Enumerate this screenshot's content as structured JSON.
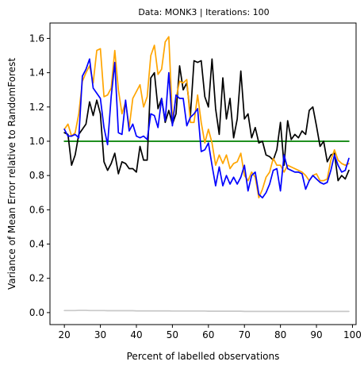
{
  "chart_data": {
    "type": "line",
    "title": "Data: MONK3 | Iterations: 100",
    "xlabel": "Percent of labelled observations",
    "ylabel": "Variance of Mean Error relative to RandomForest",
    "xlim": [
      16,
      101
    ],
    "ylim": [
      -0.07,
      1.69
    ],
    "xticks": [
      20,
      30,
      40,
      50,
      60,
      70,
      80,
      90,
      100
    ],
    "yticks": [
      0.0,
      0.2,
      0.4,
      0.6,
      0.8,
      1.0,
      1.2,
      1.4,
      1.6
    ],
    "ytick_labels": [
      "0.0",
      "0.2",
      "0.4",
      "0.6",
      "0.8",
      "1.0",
      "1.2",
      "1.4",
      "1.6"
    ],
    "x": [
      20,
      21,
      22,
      23,
      24,
      25,
      26,
      27,
      28,
      29,
      30,
      31,
      32,
      33,
      34,
      35,
      36,
      37,
      38,
      39,
      40,
      41,
      42,
      43,
      44,
      45,
      46,
      47,
      48,
      49,
      50,
      51,
      52,
      53,
      54,
      55,
      56,
      57,
      58,
      59,
      60,
      61,
      62,
      63,
      64,
      65,
      66,
      67,
      68,
      69,
      70,
      71,
      72,
      73,
      74,
      75,
      76,
      77,
      78,
      79,
      80,
      81,
      82,
      83,
      84,
      85,
      86,
      87,
      88,
      89,
      90,
      91,
      92,
      93,
      94,
      95,
      96,
      97,
      98,
      99
    ],
    "series": [
      {
        "color": "#000000",
        "values": [
          1.05,
          1.04,
          0.86,
          0.92,
          1.04,
          1.07,
          1.1,
          1.23,
          1.15,
          1.24,
          1.16,
          0.88,
          0.83,
          0.87,
          0.93,
          0.81,
          0.88,
          0.87,
          0.84,
          0.84,
          0.82,
          0.97,
          0.89,
          0.89,
          1.37,
          1.4,
          1.19,
          1.25,
          1.11,
          1.18,
          1.1,
          1.16,
          1.44,
          1.3,
          1.34,
          1.15,
          1.47,
          1.46,
          1.47,
          1.26,
          1.2,
          1.48,
          1.19,
          1.04,
          1.37,
          1.13,
          1.25,
          1.02,
          1.13,
          1.41,
          1.13,
          1.16,
          1.02,
          1.08,
          0.99,
          1.0,
          0.92,
          0.91,
          0.89,
          0.95,
          1.11,
          0.86,
          1.12,
          1.01,
          1.04,
          1.02,
          1.06,
          1.04,
          1.18,
          1.2,
          1.09,
          0.97,
          1.0,
          0.88,
          0.92,
          0.93,
          0.77,
          0.8,
          0.78,
          0.83
        ]
      },
      {
        "color": "#ffa500",
        "values": [
          1.07,
          1.1,
          1.03,
          1.05,
          1.16,
          1.35,
          1.4,
          1.44,
          1.34,
          1.53,
          1.54,
          1.26,
          1.27,
          1.31,
          1.53,
          1.3,
          1.16,
          1.23,
          1.08,
          1.25,
          1.29,
          1.33,
          1.2,
          1.26,
          1.5,
          1.56,
          1.39,
          1.42,
          1.58,
          1.61,
          1.13,
          1.25,
          1.35,
          1.34,
          1.36,
          1.11,
          1.11,
          1.27,
          1.11,
          0.99,
          1.07,
          0.99,
          0.86,
          0.92,
          0.87,
          0.92,
          0.84,
          0.87,
          0.88,
          0.93,
          0.8,
          0.77,
          0.82,
          0.79,
          0.67,
          0.72,
          0.79,
          0.82,
          0.9,
          0.86,
          0.86,
          0.82,
          0.86,
          0.85,
          0.84,
          0.83,
          0.82,
          0.8,
          0.77,
          0.8,
          0.81,
          0.77,
          0.77,
          0.78,
          0.89,
          0.95,
          0.89,
          0.87,
          0.86,
          0.87
        ]
      },
      {
        "color": "#0000ff",
        "values": [
          1.07,
          1.03,
          1.03,
          1.04,
          1.02,
          1.38,
          1.42,
          1.48,
          1.31,
          1.28,
          1.25,
          1.08,
          0.98,
          1.26,
          1.46,
          1.05,
          1.04,
          1.24,
          1.06,
          1.1,
          1.03,
          1.02,
          1.03,
          1.01,
          1.16,
          1.15,
          1.08,
          1.25,
          1.12,
          1.4,
          1.09,
          1.27,
          1.25,
          1.25,
          1.09,
          1.14,
          1.16,
          1.19,
          0.94,
          0.95,
          0.99,
          0.86,
          0.74,
          0.85,
          0.74,
          0.8,
          0.75,
          0.79,
          0.75,
          0.79,
          0.86,
          0.71,
          0.8,
          0.82,
          0.69,
          0.67,
          0.7,
          0.75,
          0.83,
          0.84,
          0.71,
          0.92,
          0.84,
          0.83,
          0.82,
          0.82,
          0.81,
          0.72,
          0.77,
          0.8,
          0.78,
          0.76,
          0.75,
          0.76,
          0.83,
          0.92,
          0.86,
          0.82,
          0.83,
          0.9
        ]
      },
      {
        "color": "#008000",
        "values": [
          1.0,
          1.0,
          1.0,
          1.0,
          1.0,
          1.0,
          1.0,
          1.0,
          1.0,
          1.0,
          1.0,
          1.0,
          1.0,
          1.0,
          1.0,
          1.0,
          1.0,
          1.0,
          1.0,
          1.0,
          1.0,
          1.0,
          1.0,
          1.0,
          1.0,
          1.0,
          1.0,
          1.0,
          1.0,
          1.0,
          1.0,
          1.0,
          1.0,
          1.0,
          1.0,
          1.0,
          1.0,
          1.0,
          1.0,
          1.0,
          1.0,
          1.0,
          1.0,
          1.0,
          1.0,
          1.0,
          1.0,
          1.0,
          1.0,
          1.0,
          1.0,
          1.0,
          1.0,
          1.0,
          1.0,
          1.0,
          1.0,
          1.0,
          1.0,
          1.0,
          1.0,
          1.0,
          1.0,
          1.0,
          1.0,
          1.0,
          1.0,
          1.0,
          1.0,
          1.0,
          1.0,
          1.0,
          1.0,
          1.0,
          1.0,
          1.0,
          1.0,
          1.0,
          1.0,
          1.0
        ]
      },
      {
        "color": "#c8c8c8",
        "values": [
          0.012,
          0.012,
          0.012,
          0.012,
          0.013,
          0.013,
          0.013,
          0.012,
          0.012,
          0.012,
          0.012,
          0.012,
          0.011,
          0.011,
          0.011,
          0.011,
          0.011,
          0.011,
          0.011,
          0.011,
          0.01,
          0.01,
          0.01,
          0.01,
          0.01,
          0.01,
          0.01,
          0.01,
          0.01,
          0.01,
          0.009,
          0.009,
          0.009,
          0.009,
          0.009,
          0.009,
          0.009,
          0.009,
          0.009,
          0.009,
          0.008,
          0.008,
          0.008,
          0.008,
          0.008,
          0.008,
          0.008,
          0.008,
          0.008,
          0.008,
          0.007,
          0.007,
          0.007,
          0.007,
          0.007,
          0.007,
          0.007,
          0.007,
          0.007,
          0.007,
          0.007,
          0.007,
          0.007,
          0.007,
          0.007,
          0.007,
          0.007,
          0.007,
          0.007,
          0.007,
          0.007,
          0.007,
          0.007,
          0.007,
          0.007,
          0.007,
          0.007,
          0.007,
          0.007,
          0.007
        ]
      }
    ]
  }
}
